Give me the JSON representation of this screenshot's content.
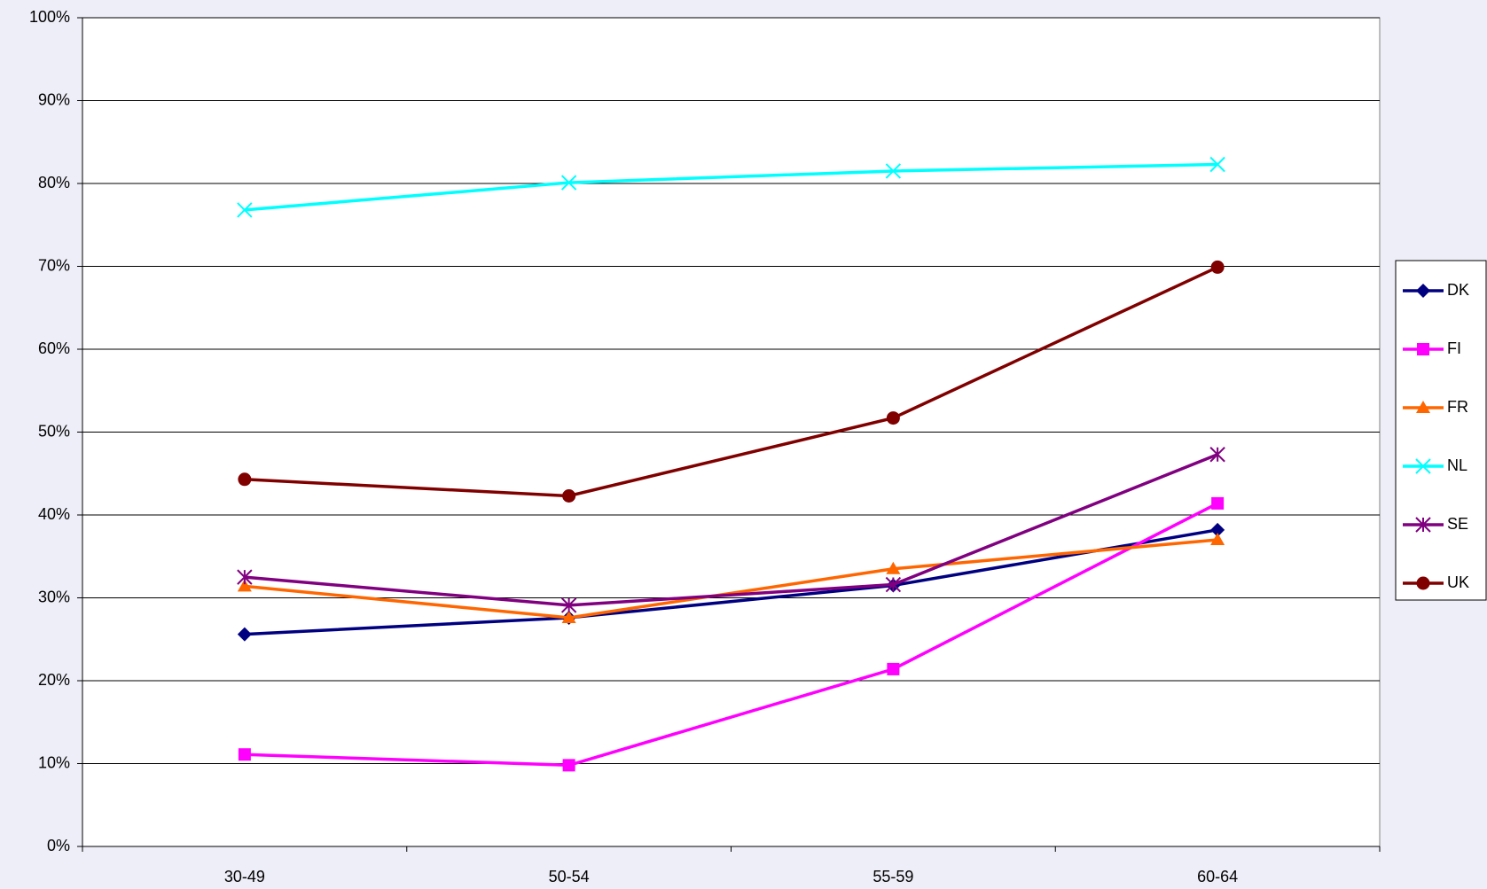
{
  "chart_data": {
    "type": "line",
    "categories": [
      "30-49",
      "50-54",
      "55-59",
      "60-64"
    ],
    "series": [
      {
        "name": "DK",
        "color": "#000080",
        "marker": "diamond",
        "values": [
          25.6,
          27.6,
          31.5,
          38.2
        ]
      },
      {
        "name": "FI",
        "color": "#ff00ff",
        "marker": "square",
        "values": [
          11.1,
          9.8,
          21.4,
          41.4
        ]
      },
      {
        "name": "FR",
        "color": "#ff6600",
        "marker": "triangle",
        "values": [
          31.4,
          27.6,
          33.5,
          37.0
        ]
      },
      {
        "name": "NL",
        "color": "#00ffff",
        "marker": "x",
        "values": [
          76.8,
          80.1,
          81.5,
          82.3
        ]
      },
      {
        "name": "SE",
        "color": "#800080",
        "marker": "star",
        "values": [
          32.5,
          29.1,
          31.6,
          47.3
        ]
      },
      {
        "name": "UK",
        "color": "#800000",
        "marker": "circle",
        "values": [
          44.3,
          42.3,
          51.7,
          69.9
        ]
      }
    ],
    "ylim": [
      0,
      100
    ],
    "yticks": [
      {
        "value": 0,
        "label": "0%"
      },
      {
        "value": 10,
        "label": "10%"
      },
      {
        "value": 20,
        "label": "20%"
      },
      {
        "value": 30,
        "label": "30%"
      },
      {
        "value": 40,
        "label": "40%"
      },
      {
        "value": 50,
        "label": "50%"
      },
      {
        "value": 60,
        "label": "60%"
      },
      {
        "value": 70,
        "label": "70%"
      },
      {
        "value": 80,
        "label": "80%"
      },
      {
        "value": 90,
        "label": "90%"
      },
      {
        "value": 100,
        "label": "100%"
      }
    ],
    "grid": true,
    "legend": "right"
  }
}
